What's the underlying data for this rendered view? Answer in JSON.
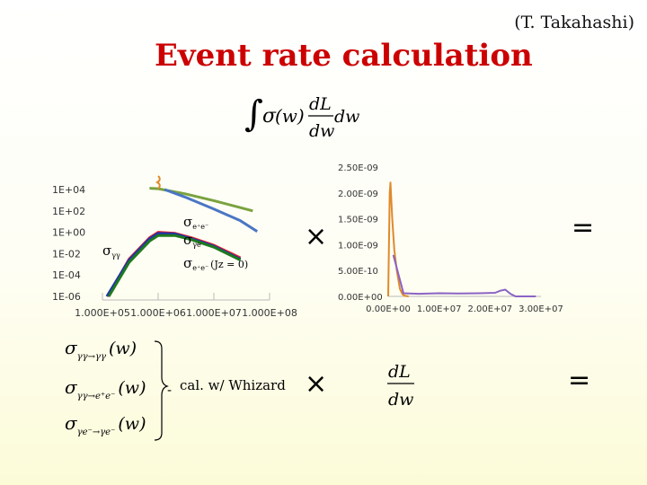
{
  "header": {
    "credit": "(T. Takahashi)",
    "title": "Event rate calculation"
  },
  "formula": {
    "integral": "∫",
    "sigma": "σ",
    "w_paren": "(w)",
    "dL": "dL",
    "dw": "dw",
    "trailing": "dw"
  },
  "operators": {
    "times": "×",
    "equals": "="
  },
  "note": {
    "label": "cal. w/ Whizard"
  },
  "processes": [
    {
      "sub": "γγ→γγ",
      "arg": "(w)"
    },
    {
      "sub": "γγ→e⁺e⁻",
      "arg": "(w)"
    },
    {
      "sub": "γe⁻→γe⁻",
      "arg": "(w)"
    }
  ],
  "bottom_fraction": {
    "num": "dL",
    "den": "dw"
  },
  "chart_data": [
    {
      "type": "line",
      "xscale": "log",
      "yscale": "log",
      "xlim": [
        100000,
        100000000
      ],
      "ylim": [
        1e-06,
        10000
      ],
      "xticks": [
        "1.000E+05",
        "1.000E+06",
        "1.000E+07",
        "1.000E+08"
      ],
      "yticks": [
        "1E+04",
        "1E+02",
        "1E+00",
        "1E-02",
        "1E-04",
        "1E-06"
      ],
      "annotations": [
        {
          "text": "σ",
          "sub": "e⁺e⁻"
        },
        {
          "text": "σ",
          "sub": "γe"
        },
        {
          "text": "σ",
          "sub": "e⁺e⁻",
          "suffix": "(Jz = 0)"
        },
        {
          "text": "σ",
          "sub": "γγ"
        }
      ],
      "series": [
        {
          "color": "#7aa23e",
          "x": [
            700000,
            1000000,
            3000000,
            10000000,
            30000000,
            50000000
          ],
          "y": [
            13000,
            12000,
            4000,
            900,
            200,
            100
          ]
        },
        {
          "color": "#4a76c4",
          "x": [
            1300000,
            3000000,
            10000000,
            30000000,
            60000000
          ],
          "y": [
            10000,
            2000,
            150,
            12,
            1.2
          ]
        },
        {
          "color": "#ee2020",
          "x": [
            125000,
            300000,
            700000,
            1000000,
            2000000,
            4000000,
            10000000,
            30000000
          ],
          "y": [
            1e-06,
            0.003,
            0.3,
            1,
            0.8,
            0.3,
            0.06,
            0.004
          ]
        },
        {
          "color": "#2233aa",
          "x": [
            120000,
            300000,
            700000,
            1000000,
            2000000,
            4000000,
            10000000,
            30000000
          ],
          "y": [
            1e-06,
            0.0025,
            0.25,
            0.8,
            0.7,
            0.25,
            0.05,
            0.003
          ]
        },
        {
          "color": "#1e7a1e",
          "x": [
            130000,
            300000,
            700000,
            1000000,
            2000000,
            4000000,
            10000000,
            30000000
          ],
          "y": [
            1e-06,
            0.0015,
            0.15,
            0.5,
            0.5,
            0.2,
            0.04,
            0.0025
          ]
        }
      ]
    },
    {
      "type": "line",
      "xlim": [
        0,
        30000000
      ],
      "ylim": [
        0,
        2.5e-09
      ],
      "xticks": [
        "0.00E+00",
        "1.00E+07",
        "2.00E+07",
        "3.00E+07"
      ],
      "yticks": [
        "2.50E-09",
        "2.00E-09",
        "1.50E-09",
        "1.00E-09",
        "5.00E-10",
        "0.00E+00"
      ],
      "series": [
        {
          "color": "#e08a2a",
          "x": [
            0,
            300000,
            450000,
            800000,
            1200000,
            1700000,
            2300000,
            2800000,
            3300000,
            4000000
          ],
          "y": [
            0,
            2e-09,
            2.2e-09,
            1.5e-09,
            9e-10,
            5e-10,
            1.5e-10,
            4e-11,
            1e-11,
            0
          ]
        },
        {
          "color": "#8a63c4",
          "x": [
            1000000,
            3000000,
            6000000,
            10000000,
            14000000,
            18000000,
            21000000,
            22000000,
            23000000,
            24000000,
            25000000,
            27000000,
            29000000
          ],
          "y": [
            8e-10,
            6e-11,
            5e-11,
            6e-11,
            5.5e-11,
            6e-11,
            7e-11,
            1.1e-10,
            1.3e-10,
            5e-11,
            0,
            0,
            0
          ]
        }
      ]
    }
  ]
}
